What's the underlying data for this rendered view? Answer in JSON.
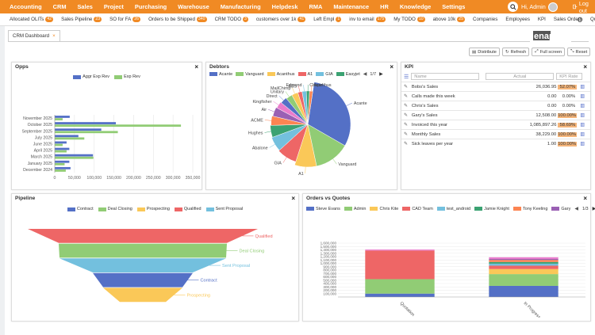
{
  "nav": {
    "items": [
      "Accounting",
      "CRM",
      "Sales",
      "Project",
      "Purchasing",
      "Warehouse",
      "Manufacturing",
      "Helpdesk",
      "RMA",
      "Maintenance",
      "HR",
      "Knowledge",
      "Settings"
    ],
    "user_label": "Hi, Admin",
    "logout_label": "Log out"
  },
  "subnav": [
    {
      "label": "Allocated OLITs",
      "badge": "42"
    },
    {
      "label": "Sales Pipeline",
      "badge": "23"
    },
    {
      "label": "SO for FA",
      "badge": "26"
    },
    {
      "label": "Orders to be Shipped",
      "badge": "340"
    },
    {
      "label": "CRM TODO",
      "badge": "3"
    },
    {
      "label": "customers over 1k",
      "badge": "41"
    },
    {
      "label": "Left Empl",
      "badge": "1"
    },
    {
      "label": "inv to email",
      "badge": "175"
    },
    {
      "label": "My TODO",
      "badge": "10"
    },
    {
      "label": "above 10k",
      "badge": "25"
    },
    {
      "label": "Companies",
      "badge": ""
    },
    {
      "label": "Employees",
      "badge": ""
    },
    {
      "label": "KPI",
      "badge": ""
    },
    {
      "label": "Sales Orders",
      "badge": ""
    },
    {
      "label": "Quotations",
      "badge": ""
    }
  ],
  "tab": {
    "label": "CRM Dashboard",
    "close": "×"
  },
  "logo": {
    "text": "enapps"
  },
  "toolbar": {
    "distribute": "Distribute",
    "refresh": "Refresh",
    "fullscreen": "Full screen",
    "reset": "Reset"
  },
  "opps": {
    "title": "Opps",
    "chart_data": {
      "type": "bar",
      "orientation": "horizontal",
      "categories": [
        "November 2025",
        "October 2025",
        "September 2025",
        "July 2025",
        "June 2025",
        "April 2025",
        "March 2025",
        "January 2025",
        "December 2024"
      ],
      "series": [
        {
          "name": "Aggr Exp Rev",
          "color": "#5470c6",
          "values": [
            38000,
            155000,
            118000,
            60000,
            30000,
            37000,
            97000,
            37000,
            40000
          ]
        },
        {
          "name": "Exp Rev",
          "color": "#91cc75",
          "values": [
            20000,
            320000,
            160000,
            75000,
            20000,
            30000,
            98000,
            25000,
            28000
          ]
        }
      ],
      "xticks": [
        "0",
        "50,000",
        "100,000",
        "150,000",
        "200,000",
        "250,000",
        "300,000",
        "350,000"
      ],
      "xlim": [
        0,
        350000
      ]
    }
  },
  "debtors": {
    "title": "Debtors",
    "legend": [
      "Acante",
      "Vanguard",
      "Acanthus",
      "A1",
      "GIA",
      "Easyjet"
    ],
    "legend_colors": [
      "#5470c6",
      "#91cc75",
      "#fac858",
      "#ee6666",
      "#73c0de",
      "#3ba272"
    ],
    "page": "1/7",
    "chart_data": {
      "type": "pie",
      "slices": [
        {
          "name": "Acante",
          "value": 30,
          "color": "#5470c6"
        },
        {
          "name": "Vanguard",
          "value": 13,
          "color": "#91cc75"
        },
        {
          "name": "A1",
          "value": 8,
          "color": "#fac858"
        },
        {
          "name": "GIA",
          "value": 8,
          "color": "#ee6666"
        },
        {
          "name": "Abalone",
          "value": 6,
          "color": "#73c0de"
        },
        {
          "name": "Hughes",
          "value": 5,
          "color": "#3ba272"
        },
        {
          "name": "ACME",
          "value": 4,
          "color": "#fc8452"
        },
        {
          "name": "Air",
          "value": 4,
          "color": "#9a60b4"
        },
        {
          "name": "Kingfisher",
          "value": 3,
          "color": "#ea7ccc"
        },
        {
          "name": "Direct",
          "value": 3,
          "color": "#5470c6"
        },
        {
          "name": "Unitary",
          "value": 3,
          "color": "#91cc75"
        },
        {
          "name": "MailChimp",
          "value": 3,
          "color": "#fac858"
        },
        {
          "name": "A&S",
          "value": 2,
          "color": "#ee6666"
        },
        {
          "name": "Edmund",
          "value": 2,
          "color": "#73c0de"
        },
        {
          "name": "Chapel",
          "value": 1.5,
          "color": "#3ba272"
        },
        {
          "name": "Acanthus",
          "value": 1.5,
          "color": "#fc8452"
        }
      ]
    }
  },
  "kpi": {
    "title": "KPI",
    "filters": {
      "name": "Name",
      "actual": "Actual",
      "rate": "KPI Rate"
    },
    "rows": [
      {
        "name": "Bobs's Sales",
        "actual": "26,036.95",
        "rate": "52.07%",
        "hl": true
      },
      {
        "name": "Calls made this week",
        "actual": "0.00",
        "rate": "0.00%",
        "hl": false
      },
      {
        "name": "Chris's Sales",
        "actual": "0.00",
        "rate": "0.00%",
        "hl": false
      },
      {
        "name": "Gary's Sales",
        "actual": "12,508.00",
        "rate": "100.00%",
        "hl": true
      },
      {
        "name": "Invoiced this year",
        "actual": "1,085,897.26",
        "rate": "58.69%",
        "hl": true
      },
      {
        "name": "Monthly Sales",
        "actual": "38,229.00",
        "rate": "100.00%",
        "hl": true
      },
      {
        "name": "Sick leaves per year",
        "actual": "1.00",
        "rate": "100.00%",
        "hl": true
      }
    ]
  },
  "pipeline": {
    "title": "Pipeline",
    "legend": [
      "Contract",
      "Deal Closing",
      "Prospecting",
      "Qualified",
      "Sent Proposal"
    ],
    "legend_colors": [
      "#5470c6",
      "#91cc75",
      "#fac858",
      "#ee6666",
      "#73c0de"
    ],
    "chart_data": {
      "type": "funnel",
      "stages": [
        {
          "name": "Qualified",
          "color": "#ee6666"
        },
        {
          "name": "Deal Closing",
          "color": "#91cc75"
        },
        {
          "name": "Sent Proposal",
          "color": "#73c0de"
        },
        {
          "name": "Contract",
          "color": "#5470c6"
        },
        {
          "name": "Prospecting",
          "color": "#fac858"
        }
      ]
    }
  },
  "orders": {
    "title": "Orders vs Quotes",
    "legend": [
      "Steve Evans",
      "Admin",
      "Chris Kite",
      "CAD Team",
      "test_android",
      "Jamie Knight",
      "Tony Keeling",
      "Gary"
    ],
    "legend_colors": [
      "#5470c6",
      "#91cc75",
      "#fac858",
      "#ee6666",
      "#73c0de",
      "#3ba272",
      "#fc8452",
      "#9a60b4"
    ],
    "page": "1/3",
    "chart_data": {
      "type": "bar",
      "stacked": true,
      "categories": [
        "Quotation",
        "In Progress"
      ],
      "series": [
        {
          "name": "Steve Evans",
          "color": "#5470c6",
          "values": [
            100000,
            330000
          ]
        },
        {
          "name": "Admin",
          "color": "#91cc75",
          "values": [
            430000,
            350000
          ]
        },
        {
          "name": "Chris Kite",
          "color": "#fac858",
          "values": [
            0,
            150000
          ]
        },
        {
          "name": "CAD Team",
          "color": "#ee6666",
          "values": [
            850000,
            100000
          ]
        },
        {
          "name": "test_android",
          "color": "#73c0de",
          "values": [
            0,
            60000
          ]
        },
        {
          "name": "Jamie Knight",
          "color": "#3ba272",
          "values": [
            0,
            50000
          ]
        },
        {
          "name": "Tony Keeling",
          "color": "#fc8452",
          "values": [
            0,
            60000
          ]
        },
        {
          "name": "Gary",
          "color": "#9a60b4",
          "values": [
            0,
            30000
          ]
        },
        {
          "name": "Other",
          "color": "#ea7ccc",
          "values": [
            30000,
            50000
          ]
        }
      ],
      "yticks": [
        "100,000",
        "200,000",
        "300,000",
        "400,000",
        "500,000",
        "600,000",
        "700,000",
        "800,000",
        "900,000",
        "1,000,000",
        "1,100,000",
        "1,200,000",
        "1,300,000",
        "1,400,000",
        "1,500,000",
        "1,600,000"
      ],
      "ylim": [
        0,
        1600000
      ]
    }
  }
}
